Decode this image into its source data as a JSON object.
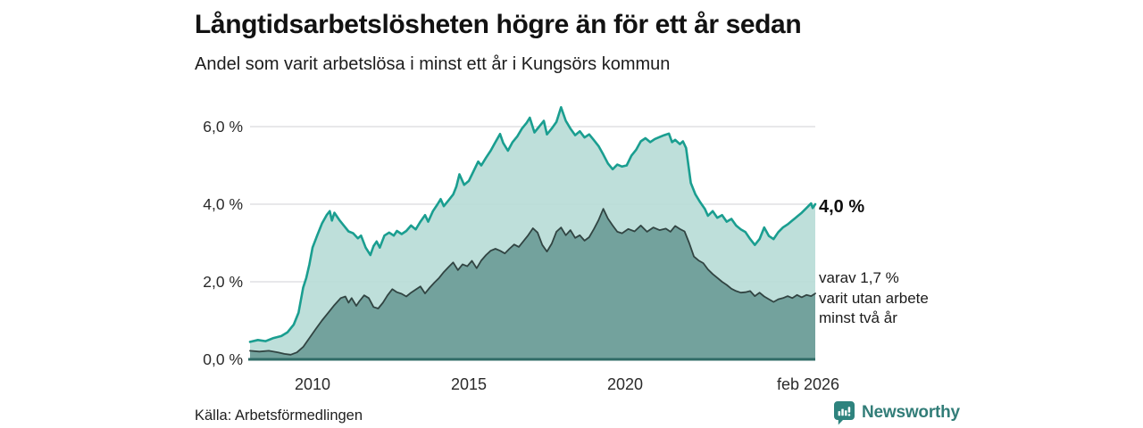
{
  "header": {
    "title": "Långtidsarbetslösheten högre än för ett år sedan",
    "subtitle": "Andel som varit arbetslösa i minst ett år i Kungsörs kommun"
  },
  "annotations": {
    "latest_total": "4,0 %",
    "secondary_lines": [
      "varav 1,7 %",
      "varit utan arbete",
      "minst två år"
    ]
  },
  "footer": {
    "source": "Källa: Arbetsförmedlingen",
    "brand": "Newsworthy"
  },
  "colors": {
    "accent_teal": "#1a9e90",
    "light_fill": "#b7dcd6",
    "dark_fill": "#6f9e9a",
    "dark_stroke": "#314442",
    "baseline": "#2f6b66",
    "gridline": "#d9d9de",
    "brand_teal": "#2e837e"
  },
  "chart_data": {
    "type": "area",
    "title": "Långtidsarbetslösheten högre än för ett år sedan",
    "subtitle": "Andel som varit arbetslösa i minst ett år i Kungsörs kommun",
    "gridlines": true,
    "gridline_color": "#d9d9de",
    "baseline_color": "#2f6b66",
    "x_axis": {
      "range": [
        2008.0,
        2026.083
      ],
      "ticks": [
        {
          "label": "2010",
          "value": 2010
        },
        {
          "label": "2015",
          "value": 2015
        },
        {
          "label": "2020",
          "value": 2020
        },
        {
          "label": "feb 2026",
          "value": 2026.083
        }
      ]
    },
    "y_axis": {
      "unit": "%",
      "range": [
        0,
        6.6
      ],
      "ticks": [
        {
          "label": "0,0 %",
          "value": 0
        },
        {
          "label": "2,0 %",
          "value": 2
        },
        {
          "label": "4,0 %",
          "value": 4
        },
        {
          "label": "6,0 %",
          "value": 6
        }
      ]
    },
    "series": [
      {
        "id": "unemployed-min-one-year",
        "end_label": "4,0 %",
        "end_value": 4.0,
        "stroke": "#1a9e90",
        "stroke_width": 2.6,
        "fill": "#b7dcd6",
        "fill_opacity": 0.9,
        "points": [
          [
            2008.0,
            0.45
          ],
          [
            2008.25,
            0.5
          ],
          [
            2008.5,
            0.47
          ],
          [
            2008.75,
            0.55
          ],
          [
            2009.0,
            0.6
          ],
          [
            2009.2,
            0.7
          ],
          [
            2009.4,
            0.9
          ],
          [
            2009.55,
            1.2
          ],
          [
            2009.7,
            1.85
          ],
          [
            2009.8,
            2.1
          ],
          [
            2009.9,
            2.45
          ],
          [
            2010.0,
            2.88
          ],
          [
            2010.15,
            3.2
          ],
          [
            2010.3,
            3.5
          ],
          [
            2010.45,
            3.72
          ],
          [
            2010.55,
            3.82
          ],
          [
            2010.62,
            3.58
          ],
          [
            2010.7,
            3.78
          ],
          [
            2010.85,
            3.6
          ],
          [
            2011.0,
            3.45
          ],
          [
            2011.15,
            3.3
          ],
          [
            2011.3,
            3.25
          ],
          [
            2011.45,
            3.12
          ],
          [
            2011.55,
            3.19
          ],
          [
            2011.7,
            2.88
          ],
          [
            2011.85,
            2.69
          ],
          [
            2011.95,
            2.92
          ],
          [
            2012.05,
            3.04
          ],
          [
            2012.15,
            2.88
          ],
          [
            2012.3,
            3.19
          ],
          [
            2012.45,
            3.27
          ],
          [
            2012.6,
            3.19
          ],
          [
            2012.7,
            3.31
          ],
          [
            2012.85,
            3.23
          ],
          [
            2013.0,
            3.31
          ],
          [
            2013.15,
            3.45
          ],
          [
            2013.3,
            3.35
          ],
          [
            2013.45,
            3.55
          ],
          [
            2013.6,
            3.72
          ],
          [
            2013.7,
            3.55
          ],
          [
            2013.85,
            3.82
          ],
          [
            2014.0,
            4.0
          ],
          [
            2014.1,
            4.13
          ],
          [
            2014.2,
            3.95
          ],
          [
            2014.35,
            4.1
          ],
          [
            2014.5,
            4.25
          ],
          [
            2014.6,
            4.45
          ],
          [
            2014.7,
            4.77
          ],
          [
            2014.85,
            4.5
          ],
          [
            2015.0,
            4.6
          ],
          [
            2015.15,
            4.85
          ],
          [
            2015.3,
            5.1
          ],
          [
            2015.4,
            5.0
          ],
          [
            2015.55,
            5.2
          ],
          [
            2015.7,
            5.38
          ],
          [
            2015.85,
            5.6
          ],
          [
            2016.0,
            5.81
          ],
          [
            2016.1,
            5.58
          ],
          [
            2016.25,
            5.38
          ],
          [
            2016.4,
            5.6
          ],
          [
            2016.55,
            5.75
          ],
          [
            2016.7,
            5.95
          ],
          [
            2016.85,
            6.1
          ],
          [
            2016.95,
            6.23
          ],
          [
            2017.1,
            5.85
          ],
          [
            2017.25,
            6.0
          ],
          [
            2017.4,
            6.15
          ],
          [
            2017.5,
            5.8
          ],
          [
            2017.65,
            5.95
          ],
          [
            2017.8,
            6.12
          ],
          [
            2017.95,
            6.5
          ],
          [
            2018.1,
            6.15
          ],
          [
            2018.25,
            5.95
          ],
          [
            2018.4,
            5.78
          ],
          [
            2018.55,
            5.88
          ],
          [
            2018.7,
            5.72
          ],
          [
            2018.85,
            5.8
          ],
          [
            2019.0,
            5.65
          ],
          [
            2019.15,
            5.5
          ],
          [
            2019.3,
            5.28
          ],
          [
            2019.45,
            5.05
          ],
          [
            2019.6,
            4.9
          ],
          [
            2019.75,
            5.02
          ],
          [
            2019.9,
            4.97
          ],
          [
            2020.05,
            5.0
          ],
          [
            2020.2,
            5.25
          ],
          [
            2020.35,
            5.4
          ],
          [
            2020.5,
            5.62
          ],
          [
            2020.65,
            5.7
          ],
          [
            2020.8,
            5.6
          ],
          [
            2020.95,
            5.68
          ],
          [
            2021.1,
            5.73
          ],
          [
            2021.25,
            5.78
          ],
          [
            2021.4,
            5.82
          ],
          [
            2021.5,
            5.6
          ],
          [
            2021.6,
            5.66
          ],
          [
            2021.75,
            5.55
          ],
          [
            2021.85,
            5.62
          ],
          [
            2021.95,
            5.45
          ],
          [
            2022.1,
            4.55
          ],
          [
            2022.25,
            4.25
          ],
          [
            2022.4,
            4.05
          ],
          [
            2022.55,
            3.88
          ],
          [
            2022.65,
            3.7
          ],
          [
            2022.8,
            3.82
          ],
          [
            2022.95,
            3.65
          ],
          [
            2023.1,
            3.72
          ],
          [
            2023.25,
            3.55
          ],
          [
            2023.4,
            3.62
          ],
          [
            2023.55,
            3.45
          ],
          [
            2023.7,
            3.35
          ],
          [
            2023.85,
            3.28
          ],
          [
            2024.0,
            3.1
          ],
          [
            2024.15,
            2.95
          ],
          [
            2024.3,
            3.1
          ],
          [
            2024.45,
            3.4
          ],
          [
            2024.6,
            3.18
          ],
          [
            2024.75,
            3.1
          ],
          [
            2024.9,
            3.28
          ],
          [
            2025.05,
            3.4
          ],
          [
            2025.2,
            3.48
          ],
          [
            2025.35,
            3.58
          ],
          [
            2025.5,
            3.68
          ],
          [
            2025.65,
            3.78
          ],
          [
            2025.8,
            3.9
          ],
          [
            2025.95,
            4.02
          ],
          [
            2026.0,
            3.9
          ],
          [
            2026.083,
            4.0
          ]
        ]
      },
      {
        "id": "unemployed-min-two-years",
        "end_label": "varav 1,7 % varit utan arbete minst två år",
        "end_value": 1.7,
        "stroke": "#314442",
        "stroke_width": 1.8,
        "fill": "#6f9e9a",
        "fill_opacity": 0.95,
        "points": [
          [
            2008.0,
            0.22
          ],
          [
            2008.3,
            0.2
          ],
          [
            2008.6,
            0.22
          ],
          [
            2008.9,
            0.18
          ],
          [
            2009.1,
            0.14
          ],
          [
            2009.3,
            0.12
          ],
          [
            2009.5,
            0.18
          ],
          [
            2009.7,
            0.32
          ],
          [
            2009.9,
            0.55
          ],
          [
            2010.1,
            0.78
          ],
          [
            2010.3,
            1.0
          ],
          [
            2010.5,
            1.2
          ],
          [
            2010.7,
            1.4
          ],
          [
            2010.9,
            1.58
          ],
          [
            2011.05,
            1.62
          ],
          [
            2011.15,
            1.46
          ],
          [
            2011.25,
            1.58
          ],
          [
            2011.4,
            1.38
          ],
          [
            2011.5,
            1.5
          ],
          [
            2011.65,
            1.65
          ],
          [
            2011.8,
            1.58
          ],
          [
            2011.95,
            1.35
          ],
          [
            2012.1,
            1.31
          ],
          [
            2012.25,
            1.46
          ],
          [
            2012.4,
            1.65
          ],
          [
            2012.55,
            1.81
          ],
          [
            2012.7,
            1.73
          ],
          [
            2012.85,
            1.69
          ],
          [
            2013.0,
            1.62
          ],
          [
            2013.15,
            1.72
          ],
          [
            2013.3,
            1.8
          ],
          [
            2013.45,
            1.88
          ],
          [
            2013.6,
            1.7
          ],
          [
            2013.75,
            1.85
          ],
          [
            2013.9,
            1.98
          ],
          [
            2014.05,
            2.1
          ],
          [
            2014.2,
            2.25
          ],
          [
            2014.35,
            2.38
          ],
          [
            2014.5,
            2.5
          ],
          [
            2014.65,
            2.3
          ],
          [
            2014.8,
            2.45
          ],
          [
            2014.95,
            2.4
          ],
          [
            2015.1,
            2.54
          ],
          [
            2015.25,
            2.35
          ],
          [
            2015.4,
            2.55
          ],
          [
            2015.55,
            2.69
          ],
          [
            2015.7,
            2.8
          ],
          [
            2015.85,
            2.85
          ],
          [
            2016.0,
            2.8
          ],
          [
            2016.15,
            2.73
          ],
          [
            2016.3,
            2.85
          ],
          [
            2016.45,
            2.96
          ],
          [
            2016.6,
            2.9
          ],
          [
            2016.75,
            3.05
          ],
          [
            2016.9,
            3.2
          ],
          [
            2017.05,
            3.38
          ],
          [
            2017.2,
            3.27
          ],
          [
            2017.35,
            2.95
          ],
          [
            2017.5,
            2.78
          ],
          [
            2017.65,
            2.98
          ],
          [
            2017.8,
            3.29
          ],
          [
            2017.95,
            3.4
          ],
          [
            2018.1,
            3.2
          ],
          [
            2018.25,
            3.33
          ],
          [
            2018.4,
            3.13
          ],
          [
            2018.55,
            3.2
          ],
          [
            2018.7,
            3.06
          ],
          [
            2018.85,
            3.15
          ],
          [
            2019.0,
            3.36
          ],
          [
            2019.15,
            3.59
          ],
          [
            2019.3,
            3.88
          ],
          [
            2019.45,
            3.63
          ],
          [
            2019.6,
            3.45
          ],
          [
            2019.75,
            3.29
          ],
          [
            2019.9,
            3.25
          ],
          [
            2020.1,
            3.36
          ],
          [
            2020.3,
            3.3
          ],
          [
            2020.5,
            3.45
          ],
          [
            2020.7,
            3.29
          ],
          [
            2020.9,
            3.4
          ],
          [
            2021.1,
            3.33
          ],
          [
            2021.3,
            3.37
          ],
          [
            2021.45,
            3.29
          ],
          [
            2021.6,
            3.44
          ],
          [
            2021.75,
            3.36
          ],
          [
            2021.9,
            3.3
          ],
          [
            2022.05,
            3.0
          ],
          [
            2022.2,
            2.65
          ],
          [
            2022.35,
            2.55
          ],
          [
            2022.5,
            2.48
          ],
          [
            2022.65,
            2.32
          ],
          [
            2022.8,
            2.2
          ],
          [
            2022.95,
            2.1
          ],
          [
            2023.1,
            2.0
          ],
          [
            2023.25,
            1.92
          ],
          [
            2023.4,
            1.82
          ],
          [
            2023.55,
            1.76
          ],
          [
            2023.7,
            1.72
          ],
          [
            2023.85,
            1.73
          ],
          [
            2024.0,
            1.76
          ],
          [
            2024.15,
            1.63
          ],
          [
            2024.3,
            1.72
          ],
          [
            2024.45,
            1.62
          ],
          [
            2024.6,
            1.55
          ],
          [
            2024.75,
            1.48
          ],
          [
            2024.9,
            1.55
          ],
          [
            2025.05,
            1.58
          ],
          [
            2025.2,
            1.63
          ],
          [
            2025.35,
            1.58
          ],
          [
            2025.5,
            1.66
          ],
          [
            2025.65,
            1.6
          ],
          [
            2025.8,
            1.66
          ],
          [
            2025.95,
            1.63
          ],
          [
            2026.083,
            1.7
          ]
        ]
      }
    ]
  }
}
